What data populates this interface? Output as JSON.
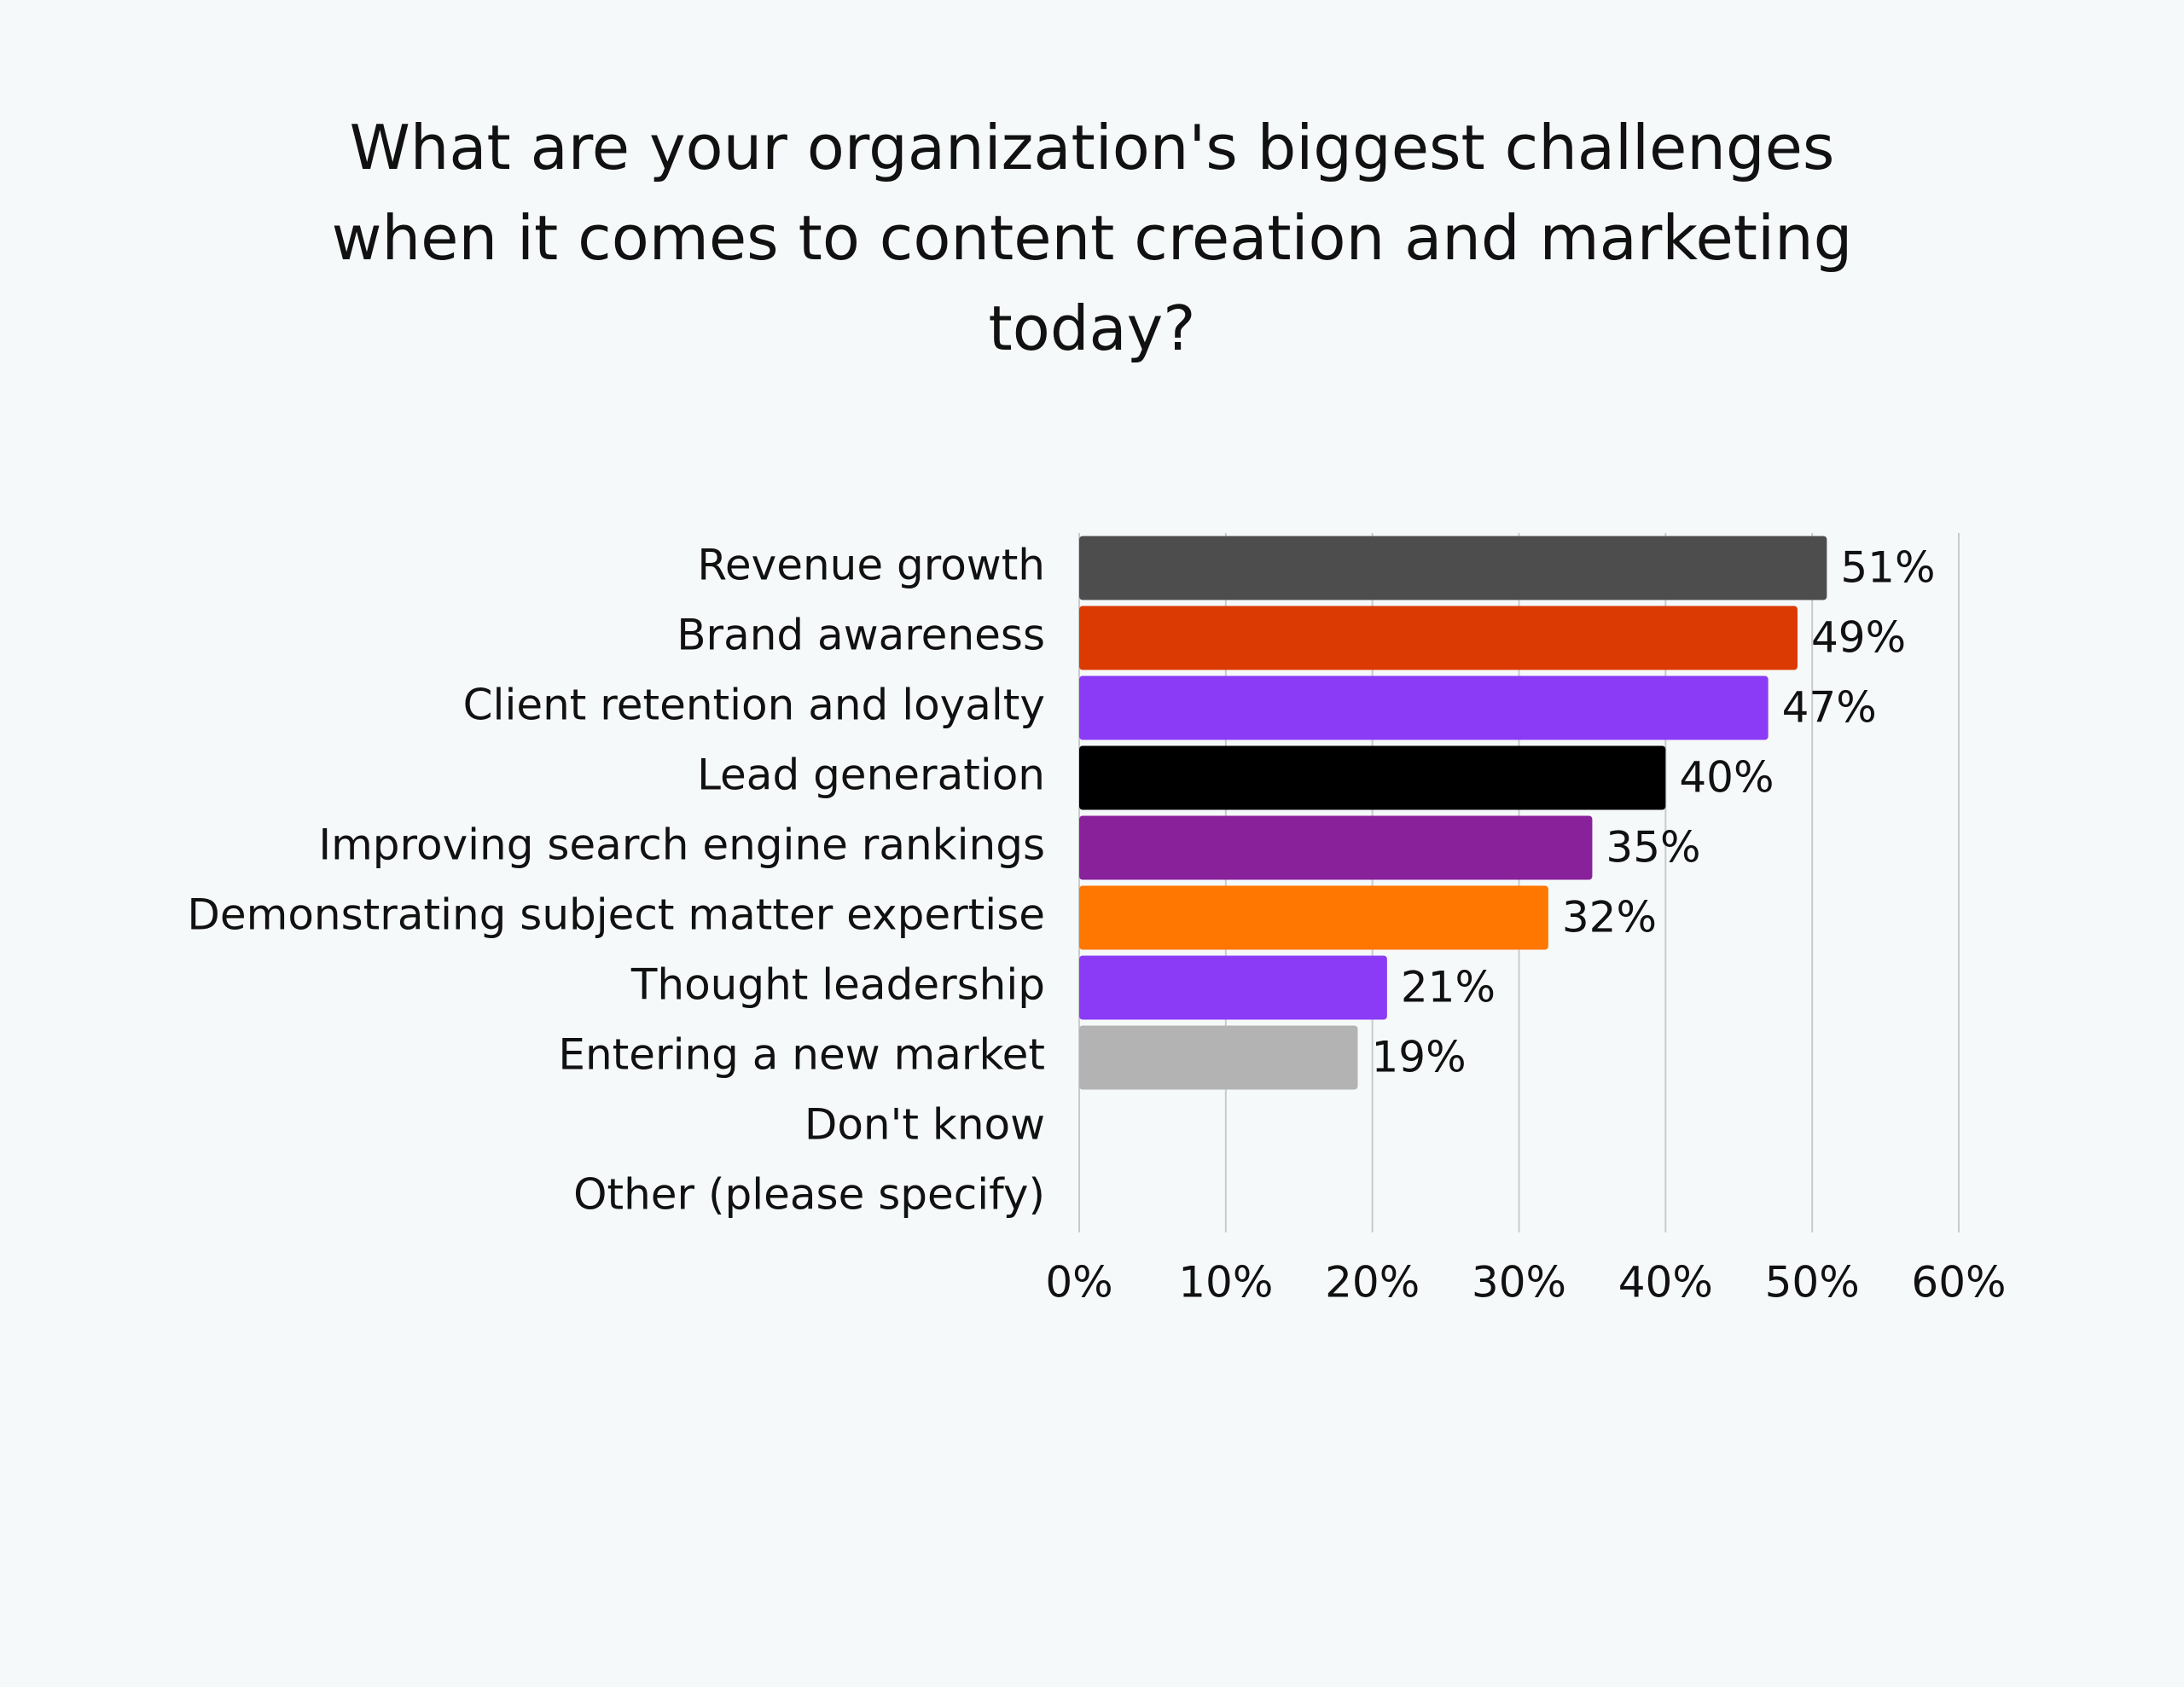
{
  "chart_data": {
    "type": "bar",
    "orientation": "horizontal",
    "title": "What are your organization's biggest challenges when it comes to content creation and marketing today?",
    "categories": [
      "Revenue growth",
      "Brand awareness",
      "Client retention and loyalty",
      "Lead generation",
      "Improving search engine rankings",
      "Demonstrating subject matter expertise",
      "Thought leadership",
      "Entering a new market",
      "Don't know",
      "Other (please specify)"
    ],
    "values": [
      51,
      49,
      47,
      40,
      35,
      32,
      21,
      19,
      null,
      null
    ],
    "value_labels": [
      "51%",
      "49%",
      "47%",
      "40%",
      "35%",
      "32%",
      "21%",
      "19%",
      null,
      null
    ],
    "colors": [
      "#4d4d4d",
      "#db3a03",
      "#8b3af6",
      "#000000",
      "#88219a",
      "#ff7700",
      "#8b3af6",
      "#b3b3b3",
      null,
      null
    ],
    "xlim": [
      0,
      60
    ],
    "xticks": [
      {
        "value": 0,
        "label": "0%"
      },
      {
        "value": 10,
        "label": "10%"
      },
      {
        "value": 20,
        "label": "20%"
      },
      {
        "value": 30,
        "label": "30%"
      },
      {
        "value": 40,
        "label": "40%"
      },
      {
        "value": 50,
        "label": "50%"
      },
      {
        "value": 60,
        "label": "60%"
      }
    ],
    "grid": true
  }
}
